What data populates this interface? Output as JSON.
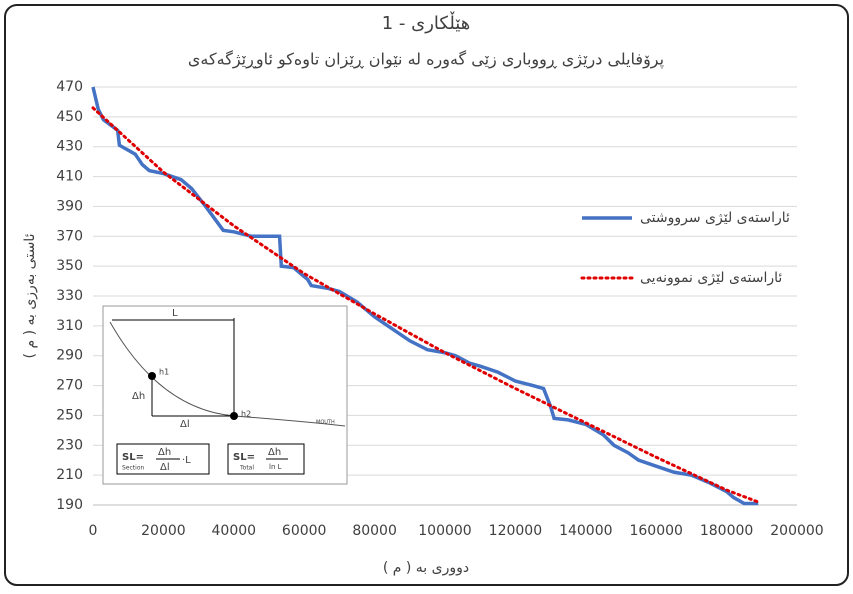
{
  "chart_data": {
    "type": "line",
    "title": "هێڵکاری - 1",
    "subtitle": "پرۆفایلی درێژی ڕووباری زێی گەورە لە نێوان ڕێزان تاوەکو ئاوڕێژگەکەی",
    "x_label": "دووری بە ( م )",
    "y_label": "ئاستی بەرزی بە ( م )",
    "xlim": [
      0,
      200000
    ],
    "xticks": [
      0,
      20000,
      40000,
      60000,
      80000,
      100000,
      120000,
      140000,
      160000,
      180000,
      200000
    ],
    "ylim": [
      190,
      470
    ],
    "yticks": [
      190,
      210,
      230,
      250,
      270,
      290,
      310,
      330,
      350,
      370,
      390,
      410,
      430,
      450,
      470
    ],
    "grid": true,
    "legend": "right",
    "series": [
      {
        "name": "ئاراستەی لێژی سرووشتی",
        "color": "#4472c4",
        "style": "solid",
        "x": [
          0,
          1500,
          3000,
          7000,
          7500,
          12000,
          14000,
          16000,
          20000,
          25000,
          28000,
          32000,
          37000,
          40000,
          45000,
          53000,
          53500,
          57000,
          61000,
          62000,
          67000,
          70000,
          75000,
          80000,
          85000,
          90000,
          95000,
          100000,
          103000,
          107000,
          110000,
          115000,
          120000,
          125000,
          128000,
          130000,
          131000,
          135000,
          140000,
          145000,
          148000,
          152000,
          155000,
          160000,
          165000,
          170000,
          175000,
          180000,
          182000,
          185000,
          189000
        ],
        "values": [
          470,
          455,
          448,
          441,
          431,
          425,
          418,
          414,
          412,
          408,
          402,
          390,
          374,
          373,
          370,
          370,
          350,
          349,
          341,
          337,
          335,
          333,
          326,
          316,
          308,
          300,
          294,
          292,
          290,
          285,
          283,
          279,
          273,
          270,
          268,
          256,
          248,
          247,
          244,
          237,
          230,
          225,
          220,
          216,
          212,
          210,
          205,
          199,
          195,
          191,
          191
        ]
      },
      {
        "name": "ئاراستەی لێژی نموونەیی",
        "color": "#e00000",
        "style": "dotted",
        "x": [
          0,
          20000,
          40000,
          60000,
          80000,
          100000,
          120000,
          140000,
          160000,
          180000,
          189000
        ],
        "values": [
          456,
          413,
          377,
          345,
          318,
          292,
          268,
          245,
          222,
          200,
          192
        ]
      }
    ],
    "inset_labels": [
      "L",
      "h1",
      "Δh",
      "Δl",
      "h2",
      "MOUTH",
      "SL=",
      "Δh",
      "Δl",
      "·L",
      "Section",
      "SL=",
      "Δh",
      "ln L",
      "Total"
    ]
  }
}
